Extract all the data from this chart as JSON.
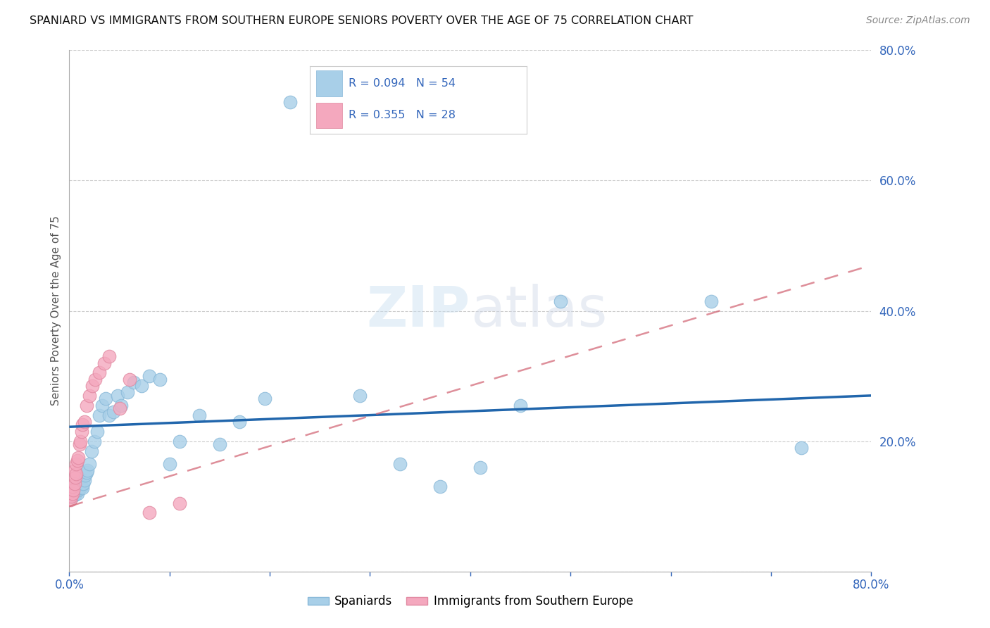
{
  "title": "SPANIARD VS IMMIGRANTS FROM SOUTHERN EUROPE SENIORS POVERTY OVER THE AGE OF 75 CORRELATION CHART",
  "source": "Source: ZipAtlas.com",
  "ylabel": "Seniors Poverty Over the Age of 75",
  "legend_label1": "Spaniards",
  "legend_label2": "Immigrants from Southern Europe",
  "R1": 0.094,
  "N1": 54,
  "R2": 0.355,
  "N2": 28,
  "color_blue": "#a8cfe8",
  "color_pink": "#f4a8be",
  "color_line_blue": "#2166ac",
  "color_line_pink": "#d06070",
  "xlim": [
    0.0,
    0.8
  ],
  "ylim": [
    0.0,
    0.8
  ],
  "spaniards_x": [
    0.002,
    0.003,
    0.004,
    0.004,
    0.005,
    0.005,
    0.006,
    0.006,
    0.007,
    0.007,
    0.008,
    0.008,
    0.009,
    0.01,
    0.01,
    0.011,
    0.012,
    0.013,
    0.014,
    0.015,
    0.016,
    0.017,
    0.018,
    0.02,
    0.022,
    0.025,
    0.028,
    0.03,
    0.033,
    0.036,
    0.04,
    0.044,
    0.048,
    0.052,
    0.058,
    0.064,
    0.072,
    0.08,
    0.09,
    0.1,
    0.11,
    0.13,
    0.15,
    0.17,
    0.195,
    0.22,
    0.29,
    0.33,
    0.37,
    0.41,
    0.45,
    0.49,
    0.64,
    0.73
  ],
  "spaniards_y": [
    0.115,
    0.115,
    0.12,
    0.125,
    0.118,
    0.122,
    0.12,
    0.13,
    0.125,
    0.128,
    0.12,
    0.126,
    0.125,
    0.13,
    0.128,
    0.135,
    0.13,
    0.128,
    0.135,
    0.14,
    0.148,
    0.152,
    0.155,
    0.165,
    0.185,
    0.2,
    0.215,
    0.24,
    0.255,
    0.265,
    0.24,
    0.245,
    0.27,
    0.255,
    0.275,
    0.29,
    0.285,
    0.3,
    0.295,
    0.165,
    0.2,
    0.24,
    0.195,
    0.23,
    0.265,
    0.72,
    0.27,
    0.165,
    0.13,
    0.16,
    0.255,
    0.415,
    0.415,
    0.19
  ],
  "immigrants_x": [
    0.001,
    0.002,
    0.003,
    0.003,
    0.004,
    0.005,
    0.005,
    0.006,
    0.007,
    0.007,
    0.008,
    0.009,
    0.01,
    0.011,
    0.012,
    0.013,
    0.015,
    0.017,
    0.02,
    0.023,
    0.026,
    0.03,
    0.035,
    0.04,
    0.05,
    0.06,
    0.08,
    0.11
  ],
  "immigrants_y": [
    0.11,
    0.115,
    0.12,
    0.13,
    0.125,
    0.135,
    0.155,
    0.145,
    0.15,
    0.165,
    0.17,
    0.175,
    0.195,
    0.2,
    0.215,
    0.225,
    0.23,
    0.255,
    0.27,
    0.285,
    0.295,
    0.305,
    0.32,
    0.33,
    0.25,
    0.295,
    0.09,
    0.105
  ],
  "blue_trend_x0": 0.0,
  "blue_trend_y0": 0.222,
  "blue_trend_x1": 0.8,
  "blue_trend_y1": 0.27,
  "pink_trend_x0": 0.0,
  "pink_trend_y0": 0.1,
  "pink_trend_x1": 0.8,
  "pink_trend_y1": 0.47
}
